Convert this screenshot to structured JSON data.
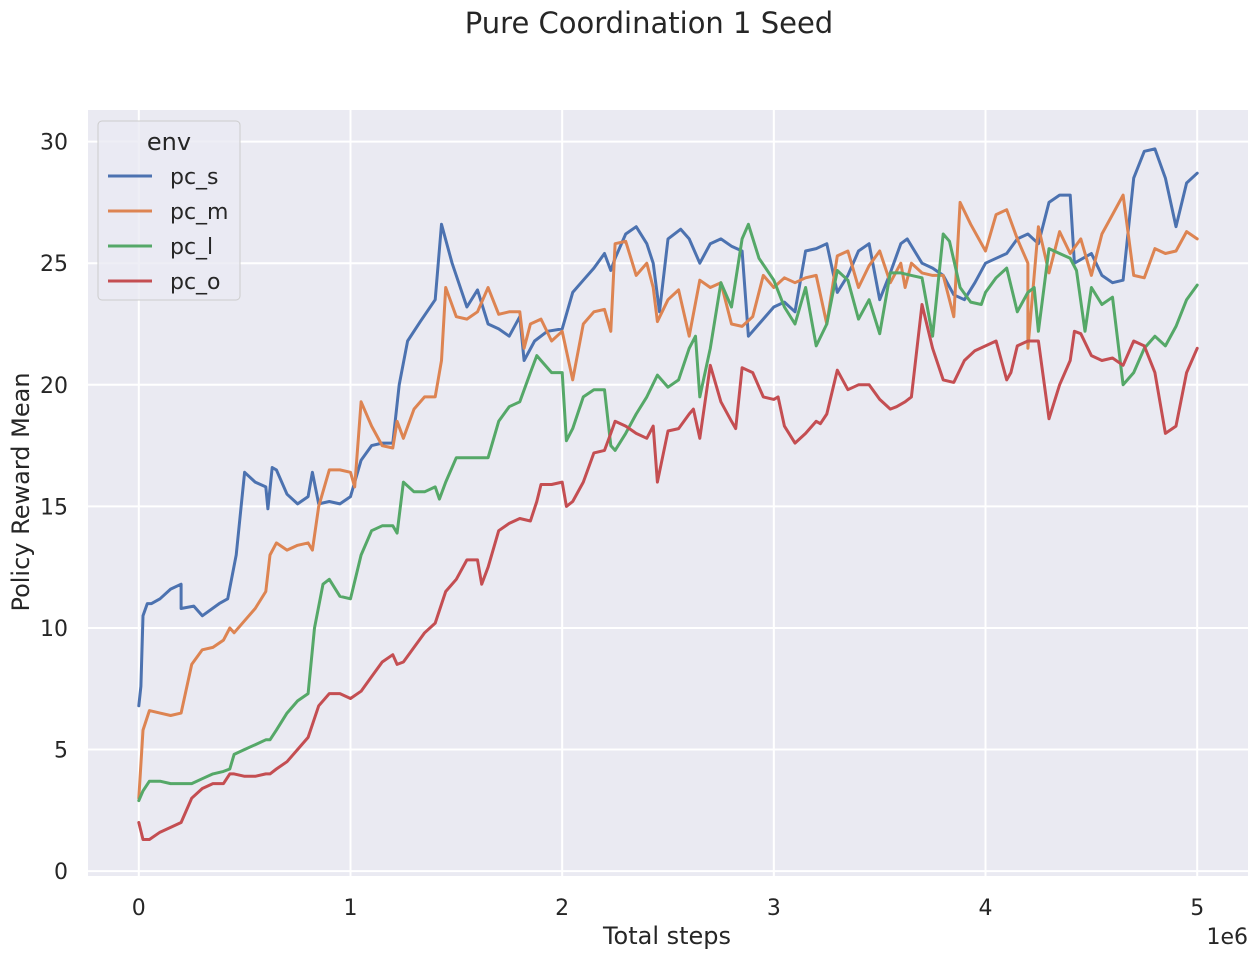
{
  "chart_data": {
    "type": "line",
    "title": "Pure Coordination 1 Seed",
    "xlabel": "Total steps",
    "ylabel": "Policy Reward Mean",
    "x_offset_label": "1e6",
    "x_ticks": [
      "0",
      "1",
      "2",
      "3",
      "4",
      "5"
    ],
    "y_ticks": [
      "0",
      "5",
      "10",
      "15",
      "20",
      "25",
      "30"
    ],
    "xlim": [
      -0.24,
      5.24
    ],
    "ylim": [
      -0.2,
      31.3
    ],
    "grid": true,
    "legend": {
      "title": "env",
      "placement": "upper-left"
    },
    "x_unit": "millions of steps",
    "series": [
      {
        "name": "pc_s",
        "color": "#4c72b0",
        "x": [
          0,
          0.01,
          0.02,
          0.04,
          0.06,
          0.1,
          0.15,
          0.2,
          0.2,
          0.26,
          0.3,
          0.38,
          0.42,
          0.46,
          0.5,
          0.55,
          0.6,
          0.61,
          0.63,
          0.65,
          0.7,
          0.75,
          0.8,
          0.82,
          0.85,
          0.9,
          0.95,
          1.0,
          1.05,
          1.1,
          1.15,
          1.2,
          1.23,
          1.27,
          1.33,
          1.4,
          1.43,
          1.48,
          1.55,
          1.6,
          1.65,
          1.7,
          1.75,
          1.8,
          1.82,
          1.87,
          1.93,
          2.0,
          2.05,
          2.1,
          2.15,
          2.2,
          2.23,
          2.25,
          2.3,
          2.35,
          2.4,
          2.43,
          2.46,
          2.5,
          2.56,
          2.6,
          2.65,
          2.7,
          2.75,
          2.8,
          2.85,
          2.88,
          2.93,
          3.0,
          3.05,
          3.1,
          3.15,
          3.2,
          3.25,
          3.3,
          3.35,
          3.4,
          3.45,
          3.5,
          3.55,
          3.6,
          3.63,
          3.7,
          3.75,
          3.8,
          3.85,
          3.9,
          3.95,
          4.0,
          4.05,
          4.1,
          4.15,
          4.2,
          4.25,
          4.3,
          4.35,
          4.4,
          4.42,
          4.5,
          4.55,
          4.6,
          4.65,
          4.7,
          4.75,
          4.8,
          4.85,
          4.9,
          4.95,
          5.0
        ],
        "y": [
          6.8,
          7.6,
          10.5,
          11.0,
          11.0,
          11.2,
          11.6,
          11.8,
          10.8,
          10.9,
          10.5,
          11.0,
          11.2,
          13.0,
          16.4,
          16.0,
          15.8,
          14.9,
          16.6,
          16.5,
          15.5,
          15.1,
          15.4,
          16.4,
          15.1,
          15.2,
          15.1,
          15.4,
          16.9,
          17.5,
          17.6,
          17.6,
          20.0,
          21.8,
          22.6,
          23.5,
          26.6,
          25.0,
          23.2,
          23.9,
          22.5,
          22.3,
          22.0,
          22.8,
          21.0,
          21.8,
          22.2,
          22.3,
          23.8,
          24.3,
          24.8,
          25.4,
          24.7,
          25.2,
          26.2,
          26.5,
          25.8,
          25.0,
          23.0,
          26.0,
          26.4,
          26.0,
          25.0,
          25.8,
          26.0,
          25.7,
          25.5,
          22.0,
          22.5,
          23.2,
          23.4,
          23.0,
          25.5,
          25.6,
          25.8,
          23.8,
          24.5,
          25.5,
          25.8,
          23.5,
          24.6,
          25.8,
          26.0,
          25.0,
          24.8,
          24.5,
          23.7,
          23.5,
          24.2,
          25.0,
          25.2,
          25.4,
          26.0,
          26.2,
          25.8,
          27.5,
          27.8,
          27.8,
          25.0,
          25.4,
          24.5,
          24.2,
          24.3,
          28.5,
          29.6,
          29.7,
          28.5,
          26.5,
          28.3,
          28.7
        ]
      },
      {
        "name": "pc_m",
        "color": "#dd8452",
        "x": [
          0,
          0.02,
          0.05,
          0.1,
          0.15,
          0.2,
          0.25,
          0.3,
          0.35,
          0.4,
          0.43,
          0.45,
          0.5,
          0.55,
          0.6,
          0.62,
          0.65,
          0.7,
          0.75,
          0.8,
          0.82,
          0.85,
          0.9,
          0.95,
          1.0,
          1.02,
          1.05,
          1.1,
          1.15,
          1.2,
          1.22,
          1.25,
          1.3,
          1.35,
          1.4,
          1.43,
          1.45,
          1.5,
          1.55,
          1.6,
          1.65,
          1.7,
          1.75,
          1.8,
          1.82,
          1.85,
          1.9,
          1.95,
          2.0,
          2.05,
          2.1,
          2.15,
          2.2,
          2.23,
          2.25,
          2.3,
          2.35,
          2.4,
          2.43,
          2.45,
          2.5,
          2.55,
          2.6,
          2.65,
          2.7,
          2.75,
          2.8,
          2.85,
          2.9,
          2.95,
          3.0,
          3.05,
          3.1,
          3.15,
          3.2,
          3.25,
          3.3,
          3.35,
          3.4,
          3.45,
          3.5,
          3.55,
          3.6,
          3.62,
          3.65,
          3.7,
          3.75,
          3.8,
          3.85,
          3.88,
          3.93,
          4.0,
          4.05,
          4.1,
          4.15,
          4.2,
          4.2,
          4.25,
          4.3,
          4.35,
          4.4,
          4.45,
          4.5,
          4.55,
          4.6,
          4.65,
          4.7,
          4.75,
          4.8,
          4.85,
          4.9,
          4.95,
          5.0
        ],
        "y": [
          3.0,
          5.8,
          6.6,
          6.5,
          6.4,
          6.5,
          8.5,
          9.1,
          9.2,
          9.5,
          10.0,
          9.8,
          10.3,
          10.8,
          11.5,
          13.0,
          13.5,
          13.2,
          13.4,
          13.5,
          13.2,
          15.0,
          16.5,
          16.5,
          16.4,
          15.8,
          19.3,
          18.3,
          17.5,
          17.4,
          18.5,
          17.8,
          19.0,
          19.5,
          19.5,
          21.0,
          24.0,
          22.8,
          22.7,
          23.0,
          24.0,
          22.9,
          23.0,
          23.0,
          21.5,
          22.5,
          22.7,
          21.8,
          22.2,
          20.2,
          22.5,
          23.0,
          23.1,
          22.2,
          25.8,
          25.9,
          24.5,
          25.0,
          24.0,
          22.6,
          23.5,
          23.9,
          22.0,
          24.3,
          24.0,
          24.2,
          22.5,
          22.4,
          22.8,
          24.5,
          24.0,
          24.4,
          24.2,
          24.4,
          24.5,
          22.5,
          25.3,
          25.5,
          24.0,
          24.9,
          25.5,
          24.2,
          25.0,
          24.0,
          25.0,
          24.6,
          24.5,
          24.5,
          22.8,
          27.5,
          26.6,
          25.5,
          27.0,
          27.2,
          26.0,
          25.0,
          21.5,
          26.5,
          24.6,
          26.3,
          25.4,
          26.0,
          24.5,
          26.2,
          27.0,
          27.8,
          24.5,
          24.4,
          25.6,
          25.4,
          25.5,
          26.3,
          26.0
        ]
      },
      {
        "name": "pc_l",
        "color": "#55a868",
        "x": [
          0,
          0.02,
          0.05,
          0.1,
          0.15,
          0.2,
          0.25,
          0.3,
          0.35,
          0.4,
          0.43,
          0.45,
          0.5,
          0.55,
          0.6,
          0.62,
          0.65,
          0.7,
          0.75,
          0.8,
          0.83,
          0.87,
          0.9,
          0.95,
          1.0,
          1.05,
          1.1,
          1.15,
          1.2,
          1.22,
          1.25,
          1.3,
          1.35,
          1.4,
          1.42,
          1.45,
          1.5,
          1.55,
          1.6,
          1.65,
          1.7,
          1.75,
          1.8,
          1.85,
          1.88,
          1.9,
          1.95,
          2.0,
          2.02,
          2.05,
          2.1,
          2.15,
          2.2,
          2.23,
          2.25,
          2.3,
          2.35,
          2.4,
          2.45,
          2.5,
          2.55,
          2.6,
          2.63,
          2.65,
          2.7,
          2.75,
          2.8,
          2.85,
          2.88,
          2.93,
          3.0,
          3.05,
          3.1,
          3.15,
          3.2,
          3.25,
          3.3,
          3.35,
          3.4,
          3.45,
          3.5,
          3.55,
          3.6,
          3.65,
          3.7,
          3.75,
          3.8,
          3.83,
          3.88,
          3.93,
          3.98,
          4.0,
          4.05,
          4.1,
          4.15,
          4.2,
          4.23,
          4.25,
          4.3,
          4.35,
          4.4,
          4.43,
          4.47,
          4.5,
          4.55,
          4.6,
          4.65,
          4.7,
          4.75,
          4.8,
          4.85,
          4.9,
          4.95,
          5.0
        ],
        "y": [
          2.9,
          3.3,
          3.7,
          3.7,
          3.6,
          3.6,
          3.6,
          3.8,
          4.0,
          4.1,
          4.2,
          4.8,
          5.0,
          5.2,
          5.4,
          5.4,
          5.8,
          6.5,
          7.0,
          7.3,
          10.0,
          11.8,
          12.0,
          11.3,
          11.2,
          13.0,
          14.0,
          14.2,
          14.2,
          13.9,
          16.0,
          15.6,
          15.6,
          15.8,
          15.3,
          16.0,
          17.0,
          17.0,
          17.0,
          17.0,
          18.5,
          19.1,
          19.3,
          20.5,
          21.2,
          21.0,
          20.5,
          20.5,
          17.7,
          18.2,
          19.5,
          19.8,
          19.8,
          17.5,
          17.3,
          18.0,
          18.8,
          19.5,
          20.4,
          19.9,
          20.2,
          21.5,
          22.0,
          19.5,
          21.5,
          24.2,
          23.2,
          26.0,
          26.6,
          25.2,
          24.3,
          23.2,
          22.5,
          24.0,
          21.6,
          22.5,
          24.7,
          24.3,
          22.7,
          23.5,
          22.1,
          24.6,
          24.6,
          24.5,
          24.4,
          22.0,
          26.2,
          25.9,
          24.0,
          23.4,
          23.3,
          23.8,
          24.4,
          24.8,
          23.0,
          23.8,
          24.0,
          22.2,
          25.6,
          25.4,
          25.2,
          24.7,
          22.2,
          24.0,
          23.3,
          23.6,
          20.0,
          20.5,
          21.5,
          22.0,
          21.6,
          22.4,
          23.5,
          24.1
        ]
      },
      {
        "name": "pc_o",
        "color": "#c44e52",
        "x": [
          0,
          0.02,
          0.05,
          0.1,
          0.15,
          0.2,
          0.25,
          0.3,
          0.35,
          0.4,
          0.43,
          0.45,
          0.5,
          0.55,
          0.6,
          0.62,
          0.65,
          0.7,
          0.75,
          0.8,
          0.85,
          0.9,
          0.95,
          1.0,
          1.05,
          1.1,
          1.15,
          1.2,
          1.22,
          1.25,
          1.3,
          1.35,
          1.4,
          1.45,
          1.5,
          1.55,
          1.6,
          1.62,
          1.65,
          1.7,
          1.75,
          1.8,
          1.85,
          1.88,
          1.9,
          1.95,
          2.0,
          2.02,
          2.05,
          2.1,
          2.15,
          2.2,
          2.23,
          2.25,
          2.3,
          2.35,
          2.4,
          2.43,
          2.45,
          2.5,
          2.55,
          2.6,
          2.62,
          2.65,
          2.7,
          2.75,
          2.8,
          2.82,
          2.85,
          2.9,
          2.95,
          3.0,
          3.02,
          3.05,
          3.1,
          3.15,
          3.2,
          3.22,
          3.25,
          3.3,
          3.35,
          3.4,
          3.45,
          3.5,
          3.55,
          3.58,
          3.62,
          3.65,
          3.7,
          3.75,
          3.8,
          3.85,
          3.9,
          3.95,
          4.0,
          4.05,
          4.1,
          4.12,
          4.15,
          4.2,
          4.25,
          4.3,
          4.35,
          4.4,
          4.42,
          4.45,
          4.5,
          4.55,
          4.6,
          4.65,
          4.7,
          4.75,
          4.8,
          4.85,
          4.9,
          4.95,
          5.0
        ],
        "y": [
          2.0,
          1.3,
          1.3,
          1.6,
          1.8,
          2.0,
          3.0,
          3.4,
          3.6,
          3.6,
          4.0,
          4.0,
          3.9,
          3.9,
          4.0,
          4.0,
          4.2,
          4.5,
          5.0,
          5.5,
          6.8,
          7.3,
          7.3,
          7.1,
          7.4,
          8.0,
          8.6,
          8.9,
          8.5,
          8.6,
          9.2,
          9.8,
          10.2,
          11.5,
          12.0,
          12.8,
          12.8,
          11.8,
          12.5,
          14.0,
          14.3,
          14.5,
          14.4,
          15.2,
          15.9,
          15.9,
          16.0,
          15.0,
          15.2,
          16.0,
          17.2,
          17.3,
          18.0,
          18.5,
          18.3,
          18.0,
          17.8,
          18.3,
          16.0,
          18.1,
          18.2,
          18.8,
          19.0,
          17.8,
          20.8,
          19.3,
          18.5,
          18.2,
          20.7,
          20.5,
          19.5,
          19.4,
          19.5,
          18.3,
          17.6,
          18.0,
          18.5,
          18.4,
          18.8,
          20.6,
          19.8,
          20.0,
          20.0,
          19.4,
          19.0,
          19.1,
          19.3,
          19.5,
          23.3,
          21.5,
          20.2,
          20.1,
          21.0,
          21.4,
          21.6,
          21.8,
          20.2,
          20.5,
          21.6,
          21.8,
          21.8,
          18.6,
          20.0,
          21.0,
          22.2,
          22.1,
          21.2,
          21.0,
          21.1,
          20.8,
          21.8,
          21.6,
          20.5,
          18.0,
          18.3,
          20.5,
          21.5
        ]
      }
    ]
  }
}
